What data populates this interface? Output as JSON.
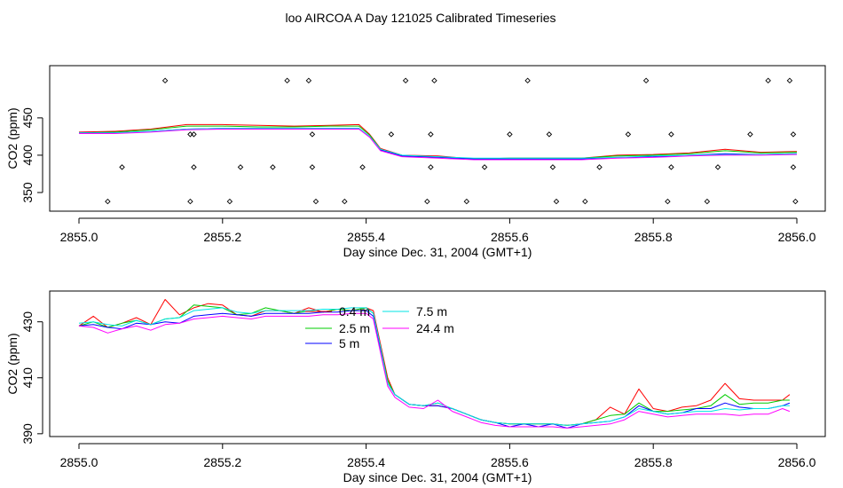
{
  "title": "loo AIRCOA A  Day 121025  Calibrated Timeseries",
  "colors": {
    "0.4 m": "#ff0000",
    "2.5 m": "#00cc00",
    "5 m": "#0000ff",
    "7.5 m": "#00e5e5",
    "24.4 m": "#ff00ff",
    "frame": "#000000"
  },
  "chart_data": [
    {
      "type": "line",
      "xlabel": "Day since Dec. 31, 2004 (GMT+1)",
      "ylabel": "CO2 (ppm)",
      "xlim": [
        2855.0,
        2856.0
      ],
      "ylim": [
        325,
        520
      ],
      "xticks": [
        2855.0,
        2855.2,
        2855.4,
        2855.6,
        2855.8,
        2856.0
      ],
      "xtick_labels": [
        "2855.0",
        "2855.2",
        "2855.4",
        "2855.6",
        "2855.8",
        "2856.0"
      ],
      "yticks": [
        350,
        400,
        450
      ],
      "ytick_labels": [
        "350",
        "400",
        "450"
      ],
      "profile": {
        "x": [
          2855.0,
          2855.05,
          2855.1,
          2855.15,
          2855.2,
          2855.25,
          2855.3,
          2855.35,
          2855.39,
          2855.405,
          2855.42,
          2855.45,
          2855.5,
          2855.55,
          2855.6,
          2855.65,
          2855.7,
          2855.75,
          2855.8,
          2855.85,
          2855.9,
          2855.95,
          2856.0
        ],
        "y": [
          430,
          430,
          432,
          434,
          435,
          435,
          435,
          435,
          435,
          425,
          408,
          400,
          398,
          396,
          396,
          396,
          396,
          397,
          399,
          400,
          401,
          401,
          402
        ]
      },
      "series": [
        {
          "name": "0.4 m",
          "offsets": [
            1,
            2,
            3,
            7,
            6,
            5,
            4,
            5,
            6,
            3,
            1,
            0,
            1,
            -1,
            0,
            0,
            0,
            3,
            2,
            3,
            7,
            3,
            3
          ]
        },
        {
          "name": "2.5 m",
          "offsets": [
            0,
            1,
            2,
            5,
            4,
            3,
            3,
            4,
            4,
            2,
            0,
            -1,
            0,
            -1,
            0,
            0,
            0,
            2,
            1,
            2,
            5,
            2,
            2
          ]
        },
        {
          "name": "5 m",
          "offsets": [
            0,
            0,
            0,
            1,
            1,
            1,
            1,
            1,
            1,
            0,
            -1,
            -1,
            -1,
            -1,
            -1,
            -1,
            -1,
            0,
            -1,
            0,
            1,
            0,
            0
          ]
        },
        {
          "name": "7.5 m",
          "offsets": [
            0,
            0,
            0,
            1,
            1,
            1,
            1,
            1,
            1,
            0,
            0,
            0,
            0,
            0,
            0,
            0,
            0,
            0,
            0,
            0,
            0,
            0,
            0
          ]
        },
        {
          "name": "24.4 m",
          "offsets": [
            -1,
            -1,
            -1,
            0,
            0,
            0,
            0,
            0,
            0,
            -1,
            -2,
            -2,
            -2,
            -2,
            -2,
            -2,
            -2,
            -1,
            -2,
            -1,
            -1,
            -1,
            -1
          ]
        }
      ],
      "markers": {
        "x": [
          2855.04,
          2855.06,
          2855.12,
          2855.155,
          2855.16,
          2855.16,
          2855.155,
          2855.21,
          2855.225,
          2855.27,
          2855.29,
          2855.32,
          2855.325,
          2855.325,
          2855.33,
          2855.37,
          2855.395,
          2855.435,
          2855.455,
          2855.485,
          2855.49,
          2855.49,
          2855.495,
          2855.54,
          2855.565,
          2855.6,
          2855.625,
          2855.655,
          2855.66,
          2855.665,
          2855.705,
          2855.725,
          2855.765,
          2855.79,
          2855.82,
          2855.825,
          2855.825,
          2855.875,
          2855.89,
          2855.935,
          2855.96,
          2855.99,
          2855.995,
          2855.995,
          2855.998
        ],
        "y": [
          338,
          384,
          500,
          338,
          384,
          428,
          428,
          338,
          384,
          384,
          500,
          500,
          428,
          384,
          338,
          338,
          384,
          428,
          500,
          338,
          384,
          428,
          500,
          338,
          384,
          428,
          500,
          428,
          384,
          338,
          338,
          384,
          428,
          500,
          338,
          384,
          428,
          338,
          384,
          428,
          500,
          500,
          428,
          384,
          338
        ]
      }
    },
    {
      "type": "line",
      "xlabel": "Day since Dec. 31, 2004 (GMT+1)",
      "ylabel": "CO2 (ppm)",
      "xlim": [
        2855.0,
        2856.0
      ],
      "ylim": [
        389,
        441
      ],
      "xticks": [
        2855.0,
        2855.2,
        2855.4,
        2855.6,
        2855.8,
        2856.0
      ],
      "xtick_labels": [
        "2855.0",
        "2855.2",
        "2855.4",
        "2855.6",
        "2855.8",
        "2856.0"
      ],
      "yticks": [
        390,
        410,
        430
      ],
      "ytick_labels": [
        "390",
        "410",
        "430"
      ],
      "legend": "top-center",
      "profile": {
        "x": [
          2855.0,
          2855.02,
          2855.04,
          2855.06,
          2855.08,
          2855.1,
          2855.12,
          2855.14,
          2855.16,
          2855.18,
          2855.2,
          2855.22,
          2855.24,
          2855.26,
          2855.28,
          2855.3,
          2855.32,
          2855.34,
          2855.36,
          2855.38,
          2855.4,
          2855.41,
          2855.42,
          2855.43,
          2855.44,
          2855.46,
          2855.48,
          2855.5,
          2855.52,
          2855.54,
          2855.56,
          2855.58,
          2855.6,
          2855.62,
          2855.64,
          2855.66,
          2855.68,
          2855.7,
          2855.72,
          2855.74,
          2855.76,
          2855.78,
          2855.8,
          2855.82,
          2855.84,
          2855.86,
          2855.88,
          2855.9,
          2855.92,
          2855.94,
          2855.96,
          2855.98,
          2855.99
        ],
        "y": [
          428.5,
          429,
          428,
          428.5,
          429.5,
          429,
          430,
          430.5,
          432,
          432.5,
          433,
          432.5,
          432,
          433,
          433,
          433,
          433,
          433.5,
          433.5,
          434,
          434,
          432,
          420,
          408,
          404,
          400.5,
          400,
          400,
          399,
          397,
          395,
          394,
          393.5,
          393.5,
          393.5,
          393.5,
          393,
          393.5,
          394,
          394.5,
          396,
          399,
          398,
          397,
          397.5,
          398,
          398,
          399,
          398.5,
          399,
          399,
          400,
          400
        ]
      },
      "series": [
        {
          "name": "0.4 m",
          "offsets": [
            0,
            3,
            0,
            1,
            2,
            0,
            8,
            2,
            3,
            4,
            3,
            0,
            0,
            1,
            1,
            0,
            2,
            0,
            1,
            0,
            1,
            2,
            2,
            2,
            0,
            0,
            0,
            0,
            0,
            0,
            0,
            0,
            0,
            0,
            0,
            0,
            0,
            0,
            1,
            5,
            1,
            7,
            1,
            1,
            2,
            2,
            4,
            9,
            4,
            3,
            3,
            2,
            4
          ]
        },
        {
          "name": "2.5 m",
          "offsets": [
            0,
            1,
            0,
            1,
            1,
            0,
            1,
            1,
            4,
            3,
            2,
            0,
            1,
            2,
            1,
            0,
            1,
            0,
            1,
            0,
            1,
            1,
            1,
            1,
            0,
            0,
            0,
            1,
            0,
            0,
            0,
            0,
            0,
            0,
            0,
            0,
            0,
            0,
            1,
            2,
            1,
            2,
            0,
            1,
            1,
            1,
            2,
            5,
            2,
            2,
            2,
            2,
            2
          ]
        },
        {
          "name": "5 m",
          "offsets": [
            0,
            0,
            0,
            -1,
            0,
            0,
            0,
            -1,
            0,
            0,
            0,
            0,
            0,
            0,
            0,
            0,
            0,
            0,
            0,
            0,
            0,
            0,
            0,
            0,
            0,
            0,
            0,
            0,
            0,
            0,
            0,
            0,
            -1,
            0,
            -1,
            0,
            -1,
            0,
            0,
            0,
            0,
            1,
            0,
            0,
            0,
            1,
            1,
            2,
            1,
            0,
            0,
            0,
            1
          ]
        },
        {
          "name": "7.5 m",
          "offsets": [
            1,
            1,
            1,
            0,
            1,
            0,
            1,
            1,
            2,
            2,
            2,
            1,
            1,
            1,
            1,
            1,
            1,
            1,
            1,
            1,
            1,
            1,
            1,
            0,
            0,
            0,
            0,
            1,
            0,
            0,
            0,
            0,
            0,
            0,
            0,
            0,
            0,
            0,
            0,
            0,
            0,
            0,
            0,
            0,
            0,
            0,
            0,
            0,
            0,
            0,
            0,
            0,
            0
          ]
        },
        {
          "name": "24.4 m",
          "offsets": [
            0,
            -1,
            -2,
            -1,
            -1,
            -2,
            -1,
            -1,
            -1,
            -1,
            -1,
            -1,
            -1,
            -1,
            -1,
            -1,
            -1,
            -1,
            -1,
            -1,
            -1,
            -1,
            -1,
            -1,
            -1,
            -1,
            -1,
            2,
            -1,
            -1,
            -1,
            -1,
            -1,
            -1,
            -1,
            -1,
            -1,
            -1,
            -1,
            -1,
            -1,
            -1,
            -1,
            -1,
            -1,
            -1,
            -1,
            -2,
            -2,
            -2,
            -2,
            -1,
            -2
          ]
        }
      ]
    }
  ]
}
